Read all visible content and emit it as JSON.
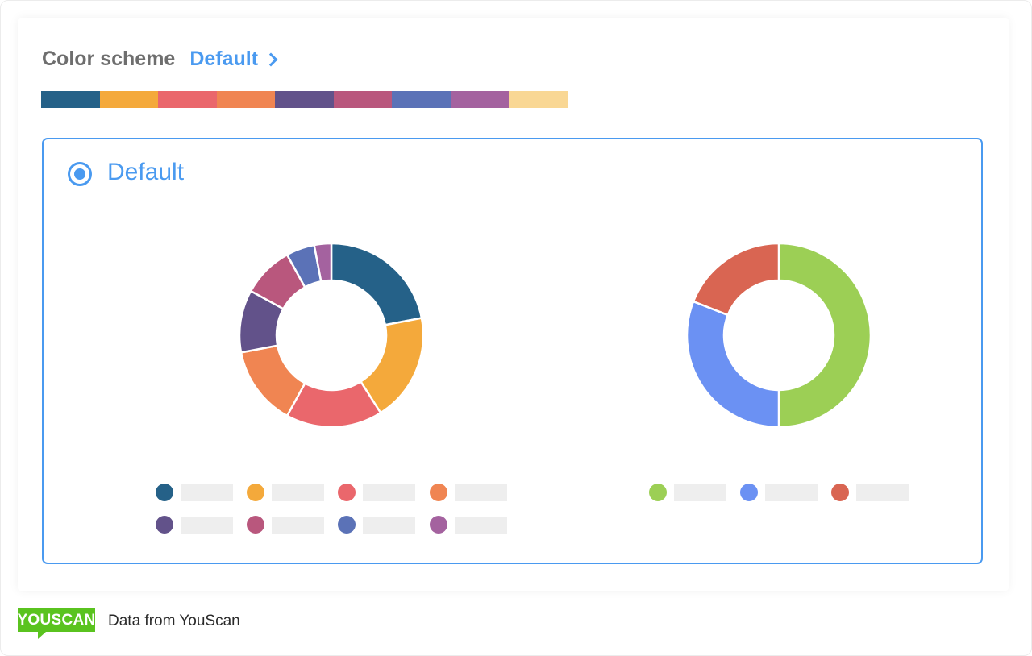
{
  "header": {
    "label": "Color scheme",
    "value": "Default"
  },
  "palette": [
    "#256188",
    "#f4a93b",
    "#ea676c",
    "#f08552",
    "#62528a",
    "#b9577d",
    "#5b72b7",
    "#a4629f",
    "#f9d794"
  ],
  "option": {
    "label": "Default",
    "selected": true,
    "accent": "#4a9af0"
  },
  "chart_data": [
    {
      "type": "pie",
      "donut": true,
      "values": [
        22,
        19,
        17,
        14,
        11,
        9,
        5,
        3
      ],
      "colors": [
        "#256188",
        "#f4a93b",
        "#ea676c",
        "#f08552",
        "#62528a",
        "#b9577d",
        "#5b72b7",
        "#a4629f"
      ]
    },
    {
      "type": "pie",
      "donut": true,
      "values": [
        50,
        31,
        19
      ],
      "colors": [
        "#9ccf55",
        "#6b91f3",
        "#d96552"
      ]
    }
  ],
  "footer": {
    "logo": "YOUSCAN",
    "credit": "Data from YouScan"
  }
}
